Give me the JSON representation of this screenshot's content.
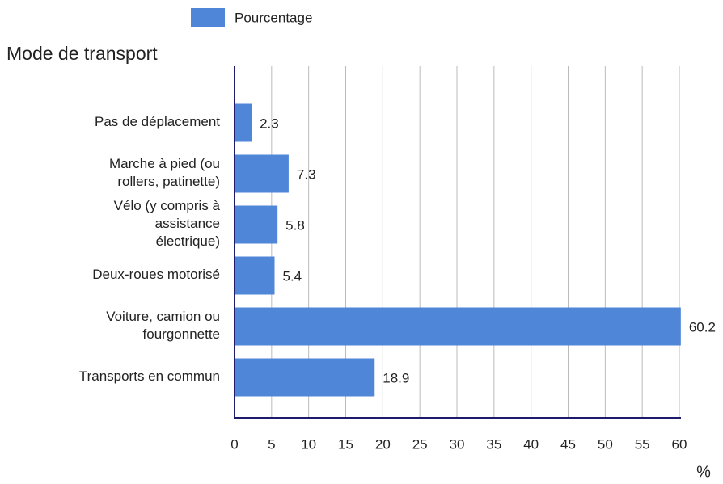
{
  "chart_data": {
    "type": "barh",
    "legend": "top",
    "ylabel": "Mode de transport",
    "xlabel": "%",
    "categories": [
      "Pas de déplacement",
      "Marche à pied (ou rollers, patinette)",
      "Vélo (y compris à assistance électrique)",
      "Deux-roues motorisé",
      "Voiture, camion ou fourgonnette",
      "Transports en commun"
    ],
    "series": [
      {
        "name": "Pourcentage",
        "color": "#4f86d8",
        "values": [
          2.3,
          7.3,
          5.8,
          5.4,
          60.2,
          18.9
        ]
      }
    ],
    "xlim": [
      0,
      60
    ],
    "xticks": [
      0,
      5,
      10,
      15,
      20,
      25,
      30,
      35,
      40,
      45,
      50,
      55,
      60
    ],
    "grid": true
  }
}
